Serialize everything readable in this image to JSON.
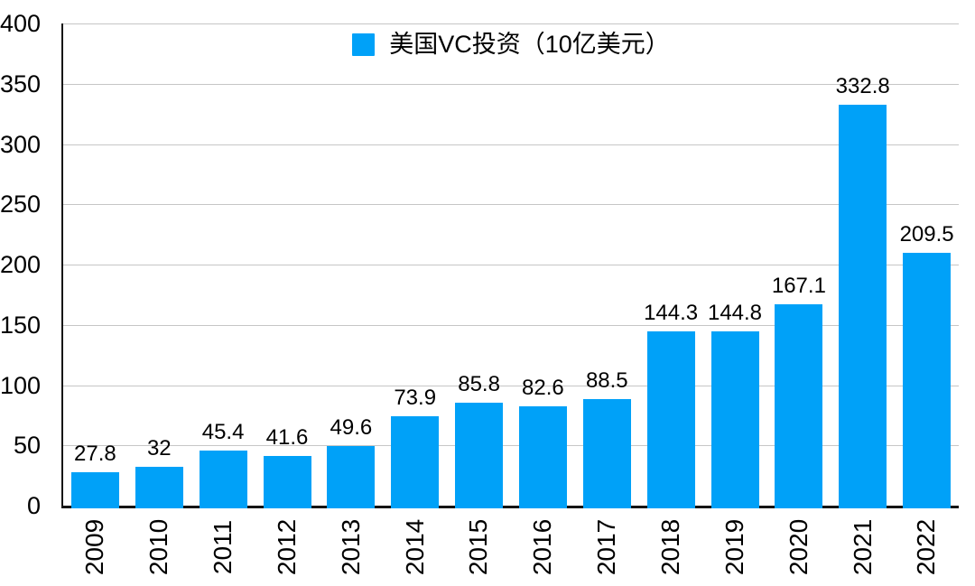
{
  "chart_data": {
    "type": "bar",
    "title": "",
    "xlabel": "",
    "ylabel": "",
    "legend": "美国VC投资（10亿美元）",
    "legend_position": "top-center",
    "categories": [
      "2009",
      "2010",
      "2011",
      "2012",
      "2013",
      "2014",
      "2015",
      "2016",
      "2017",
      "2018",
      "2019",
      "2020",
      "2021",
      "2022"
    ],
    "values": [
      27.8,
      32,
      45.4,
      41.6,
      49.6,
      73.9,
      85.8,
      82.6,
      88.5,
      144.3,
      144.8,
      167.1,
      332.8,
      209.5
    ],
    "value_labels": [
      "27.8",
      "32",
      "45.4",
      "41.6",
      "49.6",
      "73.9",
      "85.8",
      "82.6",
      "88.5",
      "144.3",
      "144.8",
      "167.1",
      "332.8",
      "209.5"
    ],
    "ylim": [
      0,
      400
    ],
    "yticks": [
      "0",
      "50",
      "100",
      "150",
      "200",
      "250",
      "300",
      "350",
      "400"
    ],
    "grid": true,
    "x_tick_rotation_deg": 90,
    "bar_color": "#00A1F8"
  },
  "colors": {
    "bar": "#00A1F8",
    "gridline": "#c6c6c6",
    "axis": "#151515",
    "text": "#000000",
    "background": "#ffffff"
  }
}
